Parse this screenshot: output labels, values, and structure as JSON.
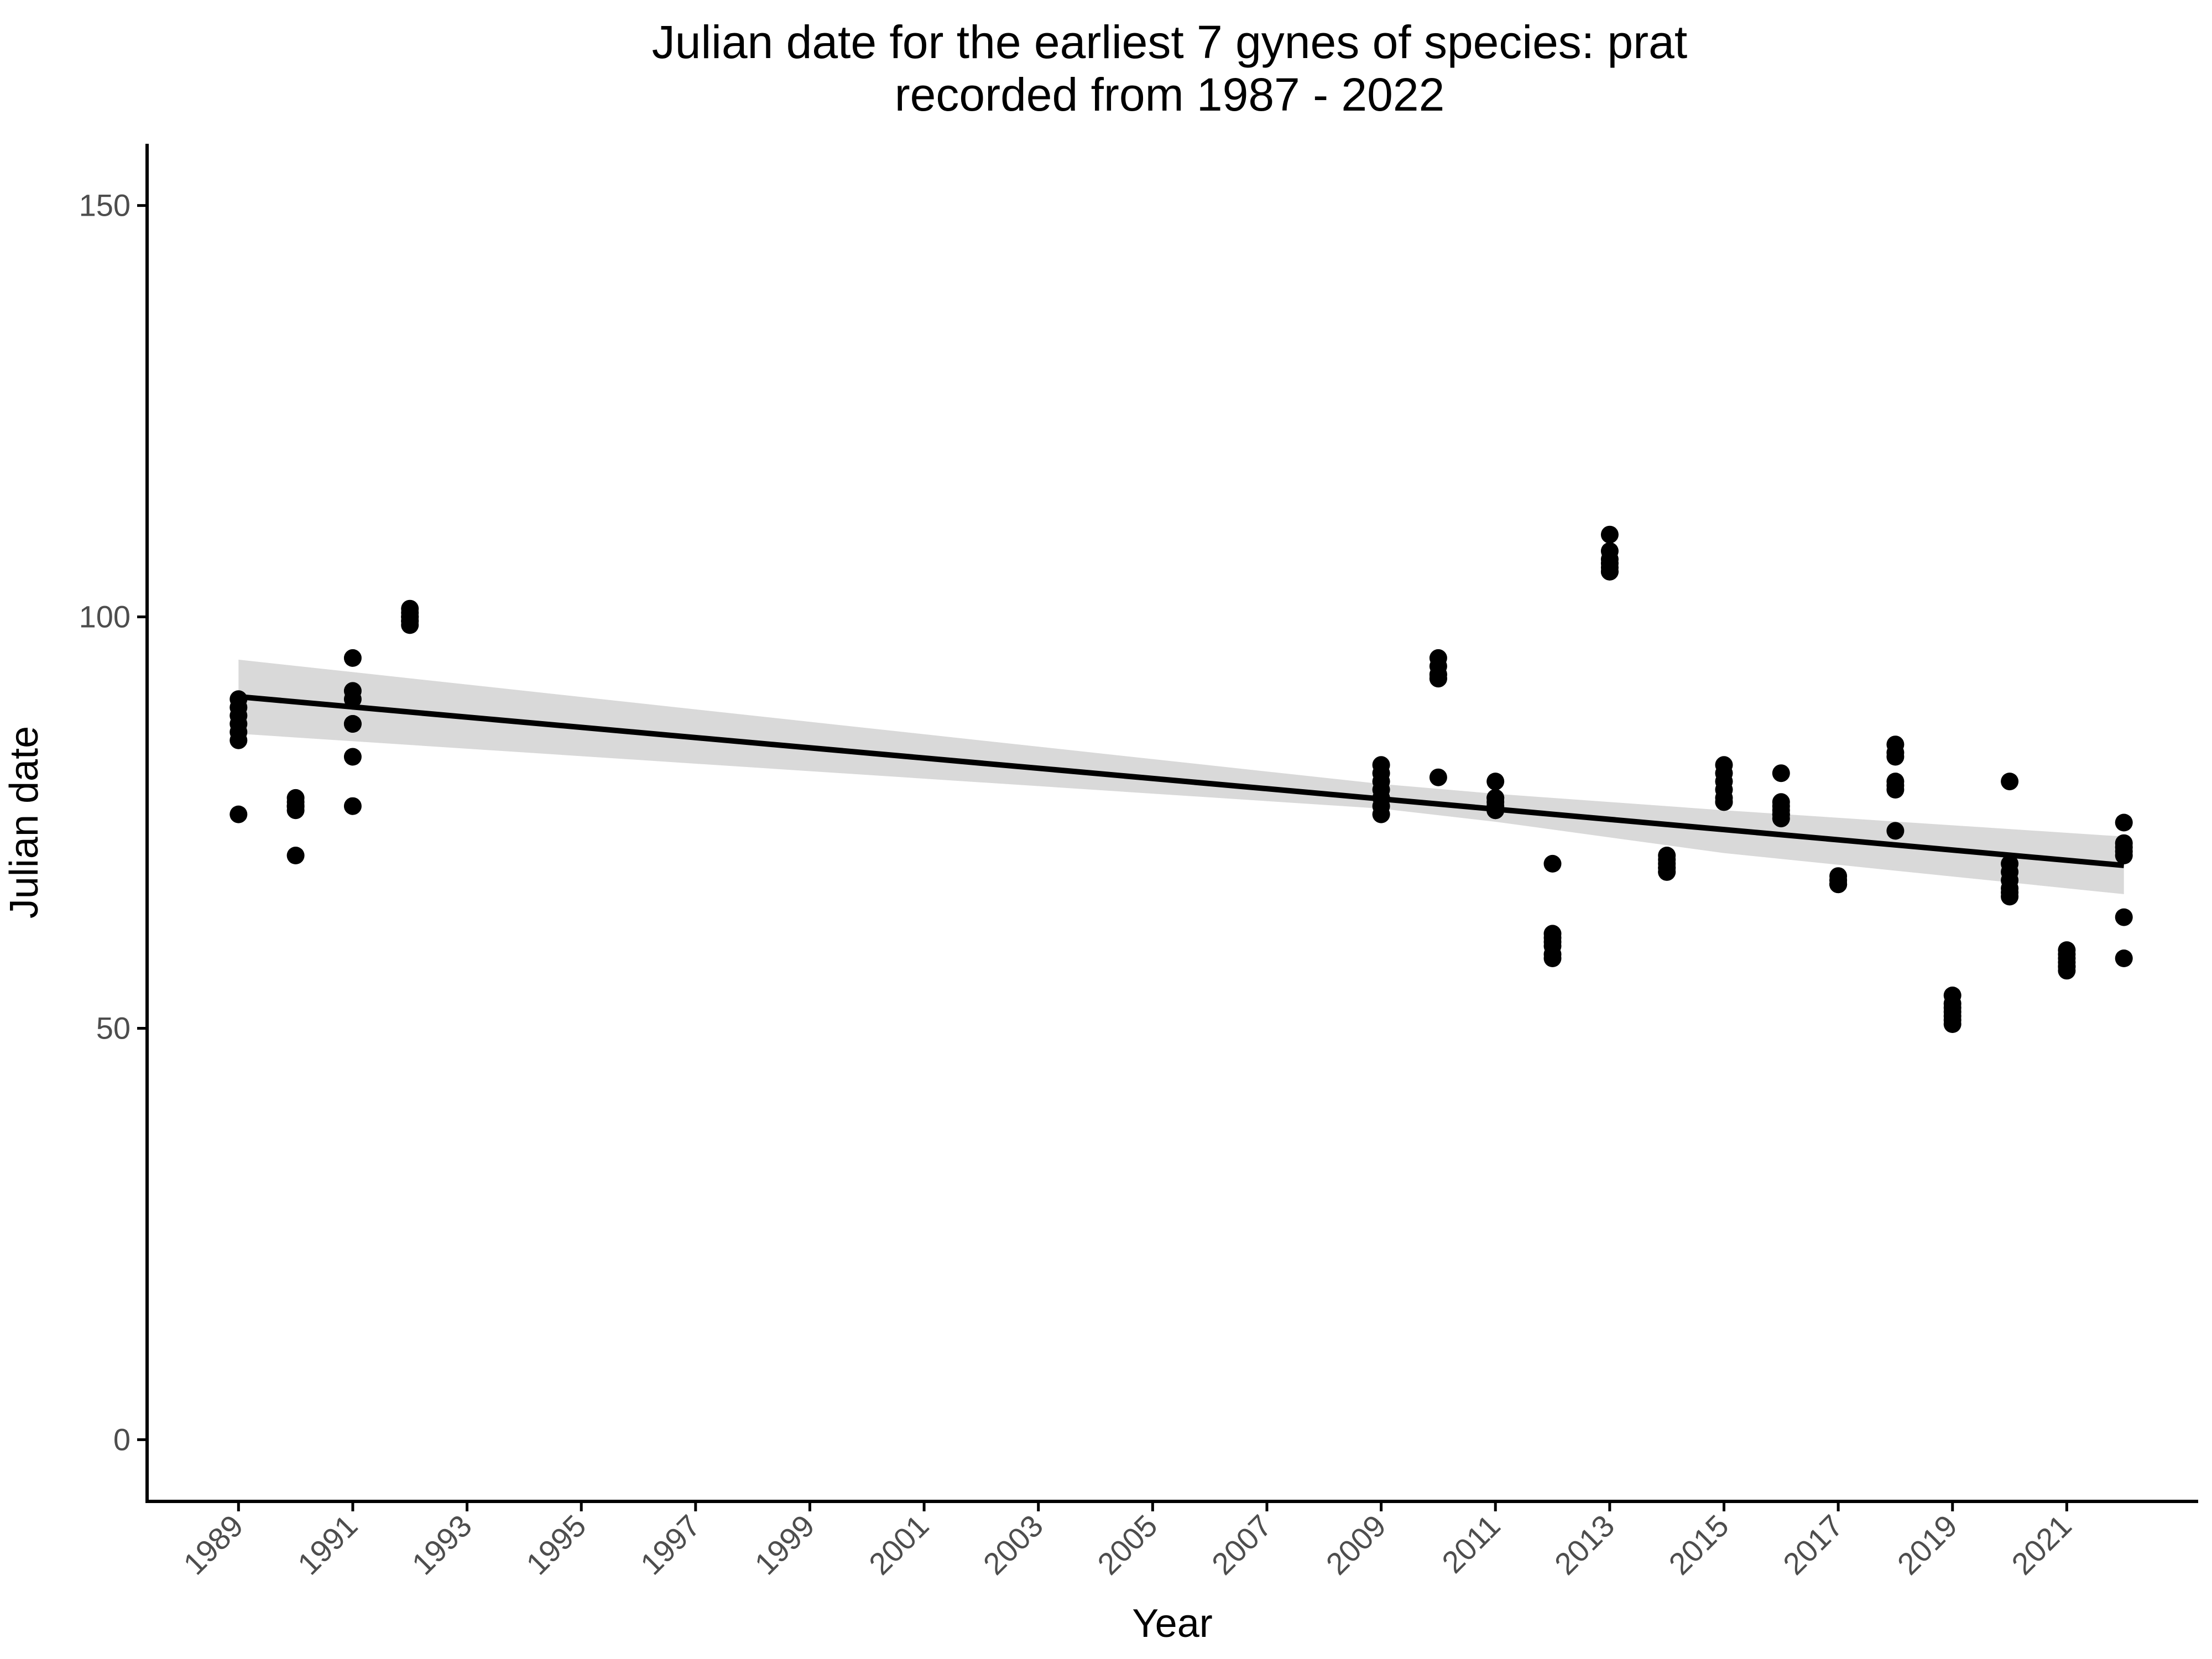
{
  "chart_data": {
    "type": "scatter",
    "title_lines": [
      "Julian date for the earliest 7 gynes of species: prat",
      "recorded from 1987 - 2022"
    ],
    "xlabel": "Year",
    "ylabel": "Julian date",
    "xlim": [
      1987.4,
      2023.3
    ],
    "ylim": [
      -7.5,
      157.5
    ],
    "x_ticks": [
      1989,
      1991,
      1993,
      1995,
      1997,
      1999,
      2001,
      2003,
      2005,
      2007,
      2009,
      2011,
      2013,
      2015,
      2017,
      2019,
      2021
    ],
    "y_ticks": [
      0,
      50,
      100,
      150
    ],
    "grid": false,
    "legend": "none",
    "colors": {
      "points": "#000000",
      "trend_line": "#000000",
      "confidence_band": "#d9d9d9",
      "axis": "#000000",
      "tick_label": "#4d4d4d"
    },
    "points": [
      [
        1989,
        90
      ],
      [
        1989,
        89
      ],
      [
        1989,
        88
      ],
      [
        1989,
        87
      ],
      [
        1989,
        86
      ],
      [
        1989,
        85
      ],
      [
        1989,
        76
      ],
      [
        1990,
        78
      ],
      [
        1990,
        77.5
      ],
      [
        1990,
        77
      ],
      [
        1990,
        77
      ],
      [
        1990,
        77
      ],
      [
        1990,
        76.5
      ],
      [
        1990,
        71
      ],
      [
        1991,
        95
      ],
      [
        1991,
        91
      ],
      [
        1991,
        90
      ],
      [
        1991,
        87
      ],
      [
        1991,
        87
      ],
      [
        1991,
        83
      ],
      [
        1991,
        77
      ],
      [
        1992,
        101
      ],
      [
        1992,
        100.5
      ],
      [
        1992,
        100
      ],
      [
        1992,
        100
      ],
      [
        1992,
        99.5
      ],
      [
        1992,
        99.5
      ],
      [
        1992,
        99
      ],
      [
        2009,
        82
      ],
      [
        2009,
        81
      ],
      [
        2009,
        80
      ],
      [
        2009,
        79
      ],
      [
        2009,
        78
      ],
      [
        2009,
        77
      ],
      [
        2009,
        76
      ],
      [
        2010,
        95
      ],
      [
        2010,
        94
      ],
      [
        2010,
        93
      ],
      [
        2010,
        93
      ],
      [
        2010,
        92.5
      ],
      [
        2010,
        92.5
      ],
      [
        2010,
        80.5
      ],
      [
        2011,
        80
      ],
      [
        2011,
        78
      ],
      [
        2011,
        78
      ],
      [
        2011,
        77.5
      ],
      [
        2011,
        77
      ],
      [
        2011,
        76.5
      ],
      [
        2011,
        76.5
      ],
      [
        2012,
        70
      ],
      [
        2012,
        61.5
      ],
      [
        2012,
        61
      ],
      [
        2012,
        60.5
      ],
      [
        2012,
        60
      ],
      [
        2012,
        59
      ],
      [
        2012,
        58.5
      ],
      [
        2013,
        110
      ],
      [
        2013,
        108
      ],
      [
        2013,
        107
      ],
      [
        2013,
        106.5
      ],
      [
        2013,
        106
      ],
      [
        2013,
        105.5
      ],
      [
        2013,
        105.5
      ],
      [
        2014,
        71
      ],
      [
        2014,
        70.5
      ],
      [
        2014,
        70
      ],
      [
        2014,
        69.5
      ],
      [
        2014,
        69.5
      ],
      [
        2014,
        69
      ],
      [
        2014,
        69
      ],
      [
        2015,
        82
      ],
      [
        2015,
        81
      ],
      [
        2015,
        80
      ],
      [
        2015,
        79
      ],
      [
        2015,
        78
      ],
      [
        2015,
        77.5
      ],
      [
        2015,
        77.5
      ],
      [
        2016,
        81
      ],
      [
        2016,
        77.5
      ],
      [
        2016,
        77
      ],
      [
        2016,
        76.5
      ],
      [
        2016,
        76
      ],
      [
        2016,
        76
      ],
      [
        2016,
        75.5
      ],
      [
        2017,
        68.5
      ],
      [
        2017,
        68
      ],
      [
        2017,
        68
      ],
      [
        2017,
        67.5
      ],
      [
        2017,
        67.5
      ],
      [
        2017,
        67.5
      ],
      [
        2017,
        67.5
      ],
      [
        2018,
        84.5
      ],
      [
        2018,
        83.5
      ],
      [
        2018,
        83
      ],
      [
        2018,
        80
      ],
      [
        2018,
        79.5
      ],
      [
        2018,
        79
      ],
      [
        2018,
        74
      ],
      [
        2019,
        54
      ],
      [
        2019,
        53
      ],
      [
        2019,
        52.5
      ],
      [
        2019,
        52
      ],
      [
        2019,
        51.5
      ],
      [
        2019,
        51
      ],
      [
        2019,
        50.5
      ],
      [
        2020,
        80
      ],
      [
        2020,
        70
      ],
      [
        2020,
        69
      ],
      [
        2020,
        68
      ],
      [
        2020,
        67
      ],
      [
        2020,
        66.5
      ],
      [
        2020,
        66
      ],
      [
        2021,
        59.5
      ],
      [
        2021,
        59
      ],
      [
        2021,
        58.5
      ],
      [
        2021,
        58
      ],
      [
        2021,
        57.5
      ],
      [
        2021,
        57.5
      ],
      [
        2021,
        57
      ],
      [
        2022,
        75
      ],
      [
        2022,
        72.5
      ],
      [
        2022,
        72
      ],
      [
        2022,
        71.5
      ],
      [
        2022,
        71
      ],
      [
        2022,
        63.5
      ],
      [
        2022,
        58.5
      ]
    ],
    "trend": {
      "x": [
        1989,
        2022
      ],
      "y": [
        90.3,
        69.8
      ]
    },
    "confidence_band": {
      "x": [
        1989,
        2009,
        2010,
        2011,
        2015,
        2022
      ],
      "upper": [
        94.8,
        79.7,
        79.1,
        78.5,
        76.5,
        73.3
      ],
      "lower": [
        85.8,
        76.7,
        75.9,
        75.1,
        71.3,
        66.3
      ]
    }
  }
}
